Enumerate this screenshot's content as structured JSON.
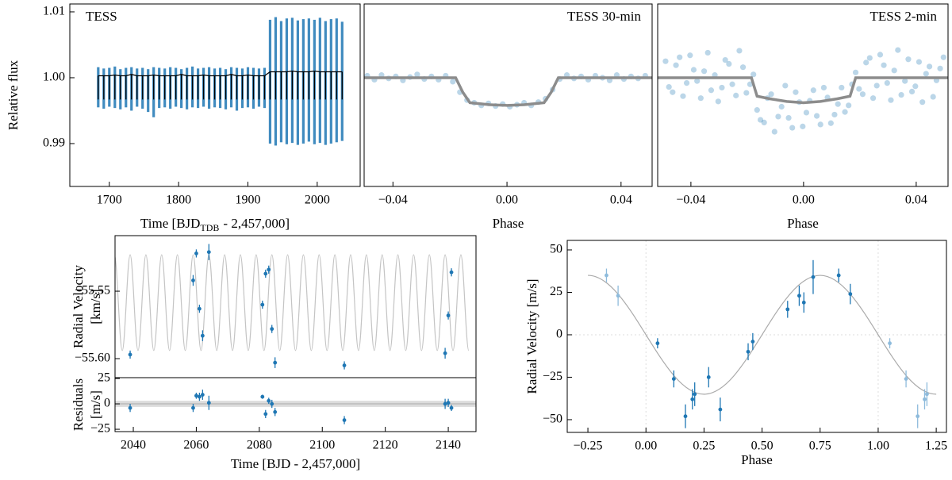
{
  "chart_data": [
    {
      "type": "range",
      "title": "TESS",
      "ylabel": "Relative flux",
      "xlabel": [
        "Time [BJD",
        "TDB",
        "- 2,457,000]"
      ],
      "color": "#1f77b4",
      "model_color": "#000000",
      "xlim": [
        1643,
        2062
      ],
      "ylim": [
        0.98349,
        1.0112
      ],
      "xticks": [
        1700,
        1800,
        1900,
        2000
      ],
      "yticks": [
        0.99,
        {
          "value": 1.0,
          "label": "1.00"
        },
        1.01
      ],
      "x": [
        1684,
        1692,
        1700,
        1708,
        1716,
        1724,
        1732,
        1740,
        1748,
        1756,
        1764,
        1772,
        1780,
        1788,
        1796,
        1804,
        1812,
        1820,
        1828,
        1836,
        1844,
        1852,
        1860,
        1868,
        1876,
        1884,
        1892,
        1900,
        1908,
        1916,
        1924,
        1932,
        1940,
        1948,
        1956,
        1964,
        1972,
        1980,
        1988,
        1996,
        2004,
        2012,
        2020,
        2028,
        2036
      ],
      "low": [
        0.9955,
        0.9953,
        0.9956,
        0.9954,
        0.9952,
        0.9955,
        0.995,
        0.9956,
        0.9953,
        0.9948,
        0.994,
        0.9954,
        0.9955,
        0.9953,
        0.9956,
        0.9954,
        0.9952,
        0.9955,
        0.9954,
        0.9956,
        0.9953,
        0.9955,
        0.9954,
        0.9952,
        0.9955,
        0.995,
        0.9954,
        0.9955,
        0.9953,
        0.9956,
        0.9954,
        0.99,
        0.9897,
        0.9902,
        0.9899,
        0.9901,
        0.9898,
        0.99,
        0.9903,
        0.9899,
        0.9901,
        0.9898,
        0.99,
        0.9902,
        0.9904
      ],
      "high": [
        1.0016,
        1.0014,
        1.0015,
        1.0017,
        1.0013,
        1.0015,
        1.0016,
        1.0014,
        1.0015,
        1.0013,
        1.0016,
        1.0015,
        1.0014,
        1.0016,
        1.0015,
        1.0013,
        1.0015,
        1.0017,
        1.0014,
        1.0015,
        1.0016,
        1.0014,
        1.0015,
        1.0013,
        1.0016,
        1.0015,
        1.0014,
        1.0016,
        1.0015,
        1.0014,
        1.0015,
        1.0088,
        1.0092,
        1.0086,
        1.009,
        1.0091,
        1.0087,
        1.0089,
        1.009,
        1.0088,
        1.0091,
        1.0086,
        1.0089,
        1.009,
        1.0085
      ],
      "model_high": [
        1.0003,
        1.0003,
        1.0003,
        1.0004,
        1.0003,
        1.0003,
        1.0005,
        1.0003,
        1.0003,
        1.0003,
        1.0004,
        1.0003,
        1.0003,
        1.0003,
        1.0003,
        1.0005,
        1.0003,
        1.0003,
        1.0003,
        1.0004,
        1.0003,
        1.0003,
        1.0003,
        1.0003,
        1.0005,
        1.0003,
        1.0003,
        1.0004,
        1.0003,
        1.0003,
        1.0003,
        1.0009,
        1.0009,
        1.0009,
        1.0009,
        1.001,
        1.0009,
        1.0009,
        1.0009,
        1.001,
        1.0009,
        1.0009,
        1.0009,
        1.0009,
        1.0009
      ],
      "model_low": [
        0.9967,
        0.9967,
        0.9967,
        0.9967,
        0.9967,
        0.9967,
        0.9967,
        0.9967,
        0.9967,
        0.9967,
        0.9967,
        0.9967,
        0.9967,
        0.9967,
        0.9967,
        0.9967,
        0.9967,
        0.9967,
        0.9967,
        0.9967,
        0.9967,
        0.9967,
        0.9967,
        0.9967,
        0.9967,
        0.9967,
        0.9967,
        0.9967,
        0.9967,
        0.9967,
        0.9967,
        0.9967,
        0.9967,
        0.9967,
        0.9967,
        0.9967,
        0.9967,
        0.9967,
        0.9967,
        0.9967,
        0.9967,
        0.9967,
        0.9967,
        0.9967,
        0.9967
      ]
    },
    {
      "type": "scatter",
      "title": "TESS 30-min",
      "xlabel": "Phase",
      "color": "#1f77b4",
      "alpha": 0.3,
      "xlim": [
        -0.0501,
        0.0509
      ],
      "ylim": [
        0.98349,
        1.0112
      ],
      "xticks": [
        {
          "value": -0.04,
          "label": "−0.04"
        },
        {
          "value": 0,
          "label": "0.00"
        },
        0.04
      ],
      "x": [
        -0.049,
        -0.0465,
        -0.044,
        -0.0415,
        -0.039,
        -0.0365,
        -0.034,
        -0.0315,
        -0.029,
        -0.0265,
        -0.024,
        -0.0215,
        -0.019,
        -0.0165,
        -0.014,
        -0.0115,
        -0.009,
        -0.0065,
        -0.004,
        -0.0015,
        0.001,
        0.0035,
        0.006,
        0.0085,
        0.011,
        0.0135,
        0.016,
        0.0185,
        0.021,
        0.0235,
        0.026,
        0.0285,
        0.031,
        0.0335,
        0.036,
        0.0385,
        0.041,
        0.0435,
        0.046,
        0.0485
      ],
      "y": [
        1.0003,
        0.9997,
        1.0004,
        0.9999,
        1.0002,
        0.9996,
        1.0001,
        1.0005,
        0.9998,
        1.0002,
        0.9997,
        1.0003,
        0.9994,
        0.9978,
        0.9966,
        0.9962,
        0.9958,
        0.9961,
        0.9957,
        0.996,
        0.9956,
        0.9959,
        0.9962,
        0.9958,
        0.9963,
        0.9968,
        0.9982,
        0.9998,
        1.0004,
        0.9999,
        1.0002,
        0.9997,
        1.0003,
        1.0,
        0.9996,
        1.0004,
        0.9998,
        1.0002,
        0.9999,
        1.0003
      ],
      "model": {
        "color": "#8c8c8c",
        "x": [
          -0.05,
          -0.018,
          -0.0155,
          -0.013,
          -0.006,
          0,
          0.006,
          0.013,
          0.0155,
          0.018,
          0.0509
        ],
        "y": [
          1.0,
          1.0,
          0.9978,
          0.9962,
          0.9959,
          0.9958,
          0.9959,
          0.9962,
          0.9978,
          1.0,
          1.0
        ]
      }
    },
    {
      "type": "scatter",
      "title": "TESS 2-min",
      "xlabel": "Phase",
      "color": "#1f77b4",
      "alpha": 0.3,
      "xlim": [
        -0.0518,
        0.0513
      ],
      "ylim": [
        0.98349,
        1.0112
      ],
      "xticks": [
        {
          "value": -0.04,
          "label": "−0.04"
        },
        {
          "value": 0,
          "label": "0.00"
        },
        0.04
      ],
      "x": [
        -0.049,
        -0.0465,
        -0.044,
        -0.0415,
        -0.039,
        -0.0365,
        -0.034,
        -0.0315,
        -0.029,
        -0.0265,
        -0.024,
        -0.0215,
        -0.019,
        -0.0165,
        -0.014,
        -0.0115,
        -0.009,
        -0.0065,
        -0.004,
        -0.0015,
        0.001,
        0.0035,
        0.006,
        0.0085,
        0.011,
        0.0135,
        0.016,
        0.0185,
        0.021,
        0.0235,
        0.026,
        0.0285,
        0.031,
        0.0335,
        0.036,
        0.0385,
        0.041,
        0.0435,
        0.046,
        0.0485,
        -0.0478,
        -0.0453,
        -0.0428,
        -0.0403,
        -0.0378,
        -0.0353,
        -0.0328,
        -0.0303,
        -0.0278,
        -0.0253,
        -0.0228,
        -0.0203,
        -0.0178,
        -0.0153,
        -0.0128,
        -0.0103,
        -0.0078,
        -0.0053,
        -0.0028,
        -0.0003,
        0.0022,
        0.0047,
        0.0072,
        0.0097,
        0.0122,
        0.0147,
        0.0172,
        0.0197,
        0.0222,
        0.0247,
        0.0272,
        0.0297,
        0.0322,
        0.0347,
        0.0372,
        0.0397,
        0.0422,
        0.0447,
        0.0472,
        0.0497
      ],
      "y": [
        1.0025,
        0.9978,
        1.0031,
        0.9992,
        1.0012,
        0.9969,
        1.0038,
        1.0004,
        0.9985,
        1.0021,
        0.9973,
        1.0016,
        0.999,
        0.9951,
        0.9932,
        0.9975,
        0.9941,
        0.9988,
        0.9924,
        0.9963,
        0.9947,
        0.9981,
        0.9929,
        0.997,
        0.9944,
        0.9985,
        0.9958,
        1.0008,
        0.9975,
        1.003,
        0.9988,
        1.0019,
        0.9966,
        1.0042,
        0.9995,
        0.9979,
        1.0024,
        1.0006,
        0.9971,
        1.0014,
        0.9986,
        1.0019,
        0.9972,
        1.0034,
        0.9995,
        1.001,
        0.9981,
        0.9964,
        1.0027,
        0.999,
        1.0041,
        0.9977,
        1.0005,
        0.9936,
        0.9969,
        0.9918,
        0.9956,
        0.9939,
        0.9978,
        0.9926,
        0.9965,
        0.9942,
        0.9985,
        0.9931,
        0.996,
        0.9948,
        0.999,
        0.9983,
        1.0023,
        0.9969,
        1.0035,
        0.9992,
        1.0011,
        0.9974,
        1.0028,
        0.9987,
        0.9963,
        1.0017,
        0.9996,
        1.0031
      ],
      "model": {
        "color": "#8c8c8c",
        "x": [
          -0.0518,
          -0.0185,
          -0.0165,
          -0.012,
          -0.006,
          0,
          0.006,
          0.012,
          0.0165,
          0.0185,
          0.0513
        ],
        "y": [
          1.0,
          1.0,
          0.9972,
          0.9968,
          0.9964,
          0.9962,
          0.9964,
          0.9968,
          0.9972,
          1.0,
          1.0
        ]
      }
    },
    {
      "type": "errorbar",
      "ylabel": [
        "Radial Velocity",
        "[km/s]"
      ],
      "xlim": [
        2034.2,
        2148.8
      ],
      "ylim": [
        -55.6141,
        -55.5088
      ],
      "yticks": [
        {
          "value": -55.6,
          "label": "−55.60"
        },
        {
          "value": -55.55,
          "label": "−55.55"
        }
      ],
      "series": [
        {
          "color": "#1f77b4",
          "x": [
            2039,
            2059,
            2060,
            2061,
            2062,
            2064,
            2081,
            2082,
            2083,
            2084,
            2085,
            2107,
            2139,
            2140,
            2141
          ],
          "y": [
            -55.597,
            -55.542,
            -55.522,
            -55.563,
            -55.583,
            -55.521,
            -55.56,
            -55.537,
            -55.534,
            -55.578,
            -55.603,
            -55.605,
            -55.596,
            -55.568,
            -55.536
          ],
          "yerr": [
            0.003,
            0.004,
            0.003,
            0.003,
            0.004,
            0.006,
            0.003,
            0.003,
            0.003,
            0.003,
            0.004,
            0.003,
            0.004,
            0.003,
            0.003
          ]
        }
      ],
      "model": {
        "kind": "extrema",
        "color": "#c4c4c4",
        "x": [
          2034,
          2036.5,
          2039,
          2041.5,
          2044,
          2046.5,
          2049,
          2051.5,
          2054,
          2056.5,
          2059,
          2061.5,
          2064,
          2066.5,
          2069,
          2071.5,
          2074,
          2076.5,
          2079,
          2081.5,
          2084,
          2086.5,
          2089,
          2091.5,
          2094,
          2096.5,
          2099,
          2101.5,
          2104,
          2106.5,
          2109,
          2111.5,
          2114,
          2116.5,
          2119,
          2121.5,
          2124,
          2126.5,
          2129,
          2131.5,
          2134,
          2136.5,
          2139,
          2141.5,
          2144,
          2146.5
        ],
        "y": [
          -55.523,
          -55.594,
          -55.523,
          -55.594,
          -55.523,
          -55.594,
          -55.523,
          -55.594,
          -55.523,
          -55.594,
          -55.523,
          -55.594,
          -55.523,
          -55.594,
          -55.523,
          -55.594,
          -55.523,
          -55.594,
          -55.523,
          -55.594,
          -55.523,
          -55.594,
          -55.523,
          -55.594,
          -55.523,
          -55.594,
          -55.523,
          -55.594,
          -55.523,
          -55.594,
          -55.523,
          -55.594,
          -55.523,
          -55.594,
          -55.523,
          -55.594,
          -55.523,
          -55.594,
          -55.523,
          -55.594,
          -55.523,
          -55.594,
          -55.523,
          -55.594,
          -55.523,
          -55.594
        ]
      }
    },
    {
      "type": "errorbar",
      "ylabel": [
        "Residuals",
        "[m/s]"
      ],
      "xlabel": "Time [BJD - 2,457,000]",
      "xlim": [
        2034.2,
        2148.8
      ],
      "ylim": [
        -27.3,
        25.8
      ],
      "xticks": [
        2040,
        2060,
        2080,
        2100,
        2120,
        2140
      ],
      "yticks": [
        {
          "value": -25,
          "label": "−25"
        },
        0,
        25
      ],
      "band": [
        -3,
        3
      ],
      "reference_lines": {
        "y": [
          0
        ]
      },
      "reference_style": "solid",
      "series": [
        {
          "color": "#1f77b4",
          "x": [
            2039,
            2059,
            2060,
            2061,
            2062,
            2064,
            2081,
            2082,
            2083,
            2084,
            2085,
            2107,
            2139,
            2140,
            2141
          ],
          "y": [
            -4,
            -4,
            8,
            7,
            9,
            1,
            7,
            -10,
            3,
            0,
            -8,
            -16,
            0,
            1,
            -4
          ],
          "yerr": [
            4,
            4,
            3,
            4,
            5,
            7,
            2,
            4,
            3,
            4,
            4,
            4,
            5,
            4,
            3
          ]
        }
      ]
    },
    {
      "type": "errorbar",
      "ylabel": "Radial Velocity [m/s]",
      "xlabel": "Phase",
      "xlim": [
        -0.339,
        1.294
      ],
      "ylim": [
        -57.5,
        55.6
      ],
      "xticks": [
        {
          "value": -0.25,
          "label": "−0.25"
        },
        {
          "value": 0,
          "label": "0.00"
        },
        0.25,
        {
          "value": 0.5,
          "label": "0.50"
        },
        0.75,
        {
          "value": 1,
          "label": "1.00"
        },
        1.25
      ],
      "yticks": [
        {
          "value": -50,
          "label": "−50"
        },
        {
          "value": -25,
          "label": "−25"
        },
        0,
        25,
        50
      ],
      "reference_lines": {
        "x": [
          0,
          1
        ],
        "y": [
          0
        ]
      },
      "reference_style": "dotted",
      "series": [
        {
          "color": "#1f77b4",
          "x": [
            0.05,
            0.12,
            0.17,
            0.2,
            0.21,
            0.27,
            0.32,
            0.44,
            0.46,
            0.61,
            0.66,
            0.68,
            0.72,
            0.83,
            0.88
          ],
          "y": [
            -5,
            -26,
            -48,
            -38,
            -35,
            -25,
            -44,
            -10,
            -4,
            15,
            23,
            19,
            34,
            35,
            24
          ],
          "yerr": [
            3,
            5,
            7,
            6,
            7,
            6,
            7,
            5,
            5,
            5,
            6,
            6,
            10,
            4,
            6
          ]
        },
        {
          "color": "#8ebbdc",
          "x": [
            -0.17,
            -0.12,
            1.05,
            1.12,
            1.17,
            1.2,
            1.21
          ],
          "y": [
            35,
            23,
            -5,
            -26,
            -48,
            -38,
            -35
          ],
          "yerr": [
            4,
            6,
            3,
            5,
            7,
            6,
            7
          ]
        }
      ],
      "model": {
        "kind": "extrema",
        "color": "#aaaaaa",
        "x": [
          -0.25,
          0.25,
          0.75,
          1.25
        ],
        "y": [
          35,
          -35,
          35,
          -35
        ]
      }
    }
  ]
}
